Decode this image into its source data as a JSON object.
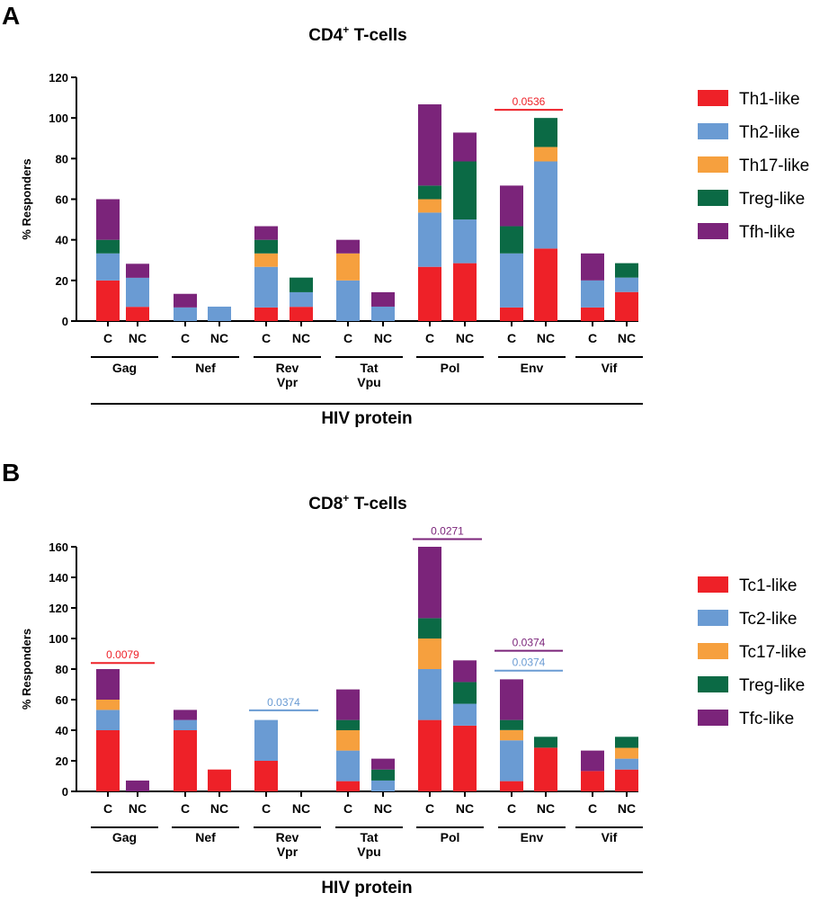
{
  "chart_data": [
    {
      "panel": "A",
      "type": "bar",
      "stacked": true,
      "title": "CD4",
      "title_sup": "+",
      "title_suffix": " T-cells",
      "ylabel": "% Responders",
      "xlabel": "HIV protein",
      "ylim": [
        0,
        120
      ],
      "yticks": [
        0,
        20,
        40,
        60,
        80,
        100,
        120
      ],
      "categories": [
        "C",
        "NC",
        "C",
        "NC",
        "C",
        "NC",
        "C",
        "NC",
        "C",
        "NC",
        "C",
        "NC",
        "C",
        "NC"
      ],
      "groups": [
        {
          "lines": [
            "Gag"
          ]
        },
        {
          "lines": [
            "Nef"
          ]
        },
        {
          "lines": [
            "Rev",
            "Vpr"
          ]
        },
        {
          "lines": [
            "Tat",
            "Vpu"
          ]
        },
        {
          "lines": [
            "Pol"
          ]
        },
        {
          "lines": [
            "Env"
          ]
        },
        {
          "lines": [
            "Vif"
          ]
        }
      ],
      "series": [
        {
          "name": "Th1-like",
          "color": "#ee2128",
          "values": [
            20,
            7,
            0,
            0,
            6.7,
            7,
            0,
            0,
            26.7,
            28.5,
            6.7,
            35.7,
            6.7,
            14.3
          ]
        },
        {
          "name": "Th2-like",
          "color": "#6a9bd3",
          "values": [
            13.3,
            14.3,
            6.7,
            7.1,
            20,
            7.2,
            20,
            7.1,
            26.7,
            21.5,
            26.6,
            42.9,
            13.3,
            7.1
          ]
        },
        {
          "name": "Th17-like",
          "color": "#f6a03e",
          "values": [
            0,
            0,
            0,
            0,
            6.6,
            0,
            13.3,
            0,
            6.6,
            0,
            0,
            7.1,
            0,
            0
          ]
        },
        {
          "name": "Treg-like",
          "color": "#0b6a45",
          "values": [
            6.7,
            0,
            0,
            0,
            6.7,
            7.2,
            0,
            0,
            6.7,
            28.6,
            13.4,
            14.3,
            0,
            7.1
          ]
        },
        {
          "name": "Tfh-like",
          "color": "#7b247a",
          "values": [
            20,
            6.9,
            6.7,
            0,
            6.7,
            0,
            6.7,
            7.1,
            40,
            14.2,
            20,
            0,
            13.3,
            0
          ]
        }
      ],
      "annotations": [
        {
          "label": "0.0536",
          "color": "#ee2128",
          "from_bar": 10,
          "to_bar": 11,
          "y": 104
        }
      ]
    },
    {
      "panel": "B",
      "type": "bar",
      "stacked": true,
      "title": "CD8",
      "title_sup": "+",
      "title_suffix": " T-cells",
      "ylabel": "% Responders",
      "xlabel": "HIV protein",
      "ylim": [
        0,
        160
      ],
      "yticks": [
        0,
        20,
        40,
        60,
        80,
        100,
        120,
        140,
        160
      ],
      "categories": [
        "C",
        "NC",
        "C",
        "NC",
        "C",
        "NC",
        "C",
        "NC",
        "C",
        "NC",
        "C",
        "NC",
        "C",
        "NC"
      ],
      "groups": [
        {
          "lines": [
            "Gag"
          ]
        },
        {
          "lines": [
            "Nef"
          ]
        },
        {
          "lines": [
            "Rev",
            "Vpr"
          ]
        },
        {
          "lines": [
            "Tat",
            "Vpu"
          ]
        },
        {
          "lines": [
            "Pol"
          ]
        },
        {
          "lines": [
            "Env"
          ]
        },
        {
          "lines": [
            "Vif"
          ]
        }
      ],
      "series": [
        {
          "name": "Tc1-like",
          "color": "#ee2128",
          "values": [
            40,
            0,
            40,
            14.3,
            20,
            0,
            6.7,
            0,
            46.7,
            43,
            6.7,
            28.6,
            13.3,
            14.3
          ]
        },
        {
          "name": "Tc2-like",
          "color": "#6a9bd3",
          "values": [
            13.3,
            0,
            6.7,
            0,
            26.7,
            0,
            20,
            7.1,
            33.3,
            14.3,
            26.7,
            0,
            0,
            7.1
          ]
        },
        {
          "name": "Tc17-like",
          "color": "#f6a03e",
          "values": [
            6.7,
            0,
            0,
            0,
            0,
            0,
            13.3,
            0,
            20,
            0,
            6.7,
            0,
            0,
            7.1
          ]
        },
        {
          "name": "Treg-like",
          "color": "#0b6a45",
          "values": [
            0,
            0,
            0,
            0,
            0,
            0,
            6.7,
            7.2,
            13.3,
            14.2,
            6.6,
            7.1,
            0,
            7.2
          ]
        },
        {
          "name": "Tfc-like",
          "color": "#7b247a",
          "values": [
            20,
            7.1,
            6.6,
            0,
            0,
            0,
            20,
            7.1,
            46.7,
            14.2,
            26.6,
            0,
            13.4,
            0
          ]
        }
      ],
      "annotations": [
        {
          "label": "0.0079",
          "color": "#ee2128",
          "from_bar": 0,
          "to_bar": 1,
          "y": 84
        },
        {
          "label": "0.0374",
          "color": "#6a9bd3",
          "from_bar": 4,
          "to_bar": 5,
          "y": 53
        },
        {
          "label": "0.0271",
          "color": "#7b247a",
          "from_bar": 8,
          "to_bar": 9,
          "y": 165
        },
        {
          "label": "0.0374",
          "color": "#7b247a",
          "from_bar": 10,
          "to_bar": 11,
          "y": 92
        },
        {
          "label": "0.0374",
          "color": "#6a9bd3",
          "from_bar": 10,
          "to_bar": 11,
          "y": 79
        }
      ]
    }
  ]
}
